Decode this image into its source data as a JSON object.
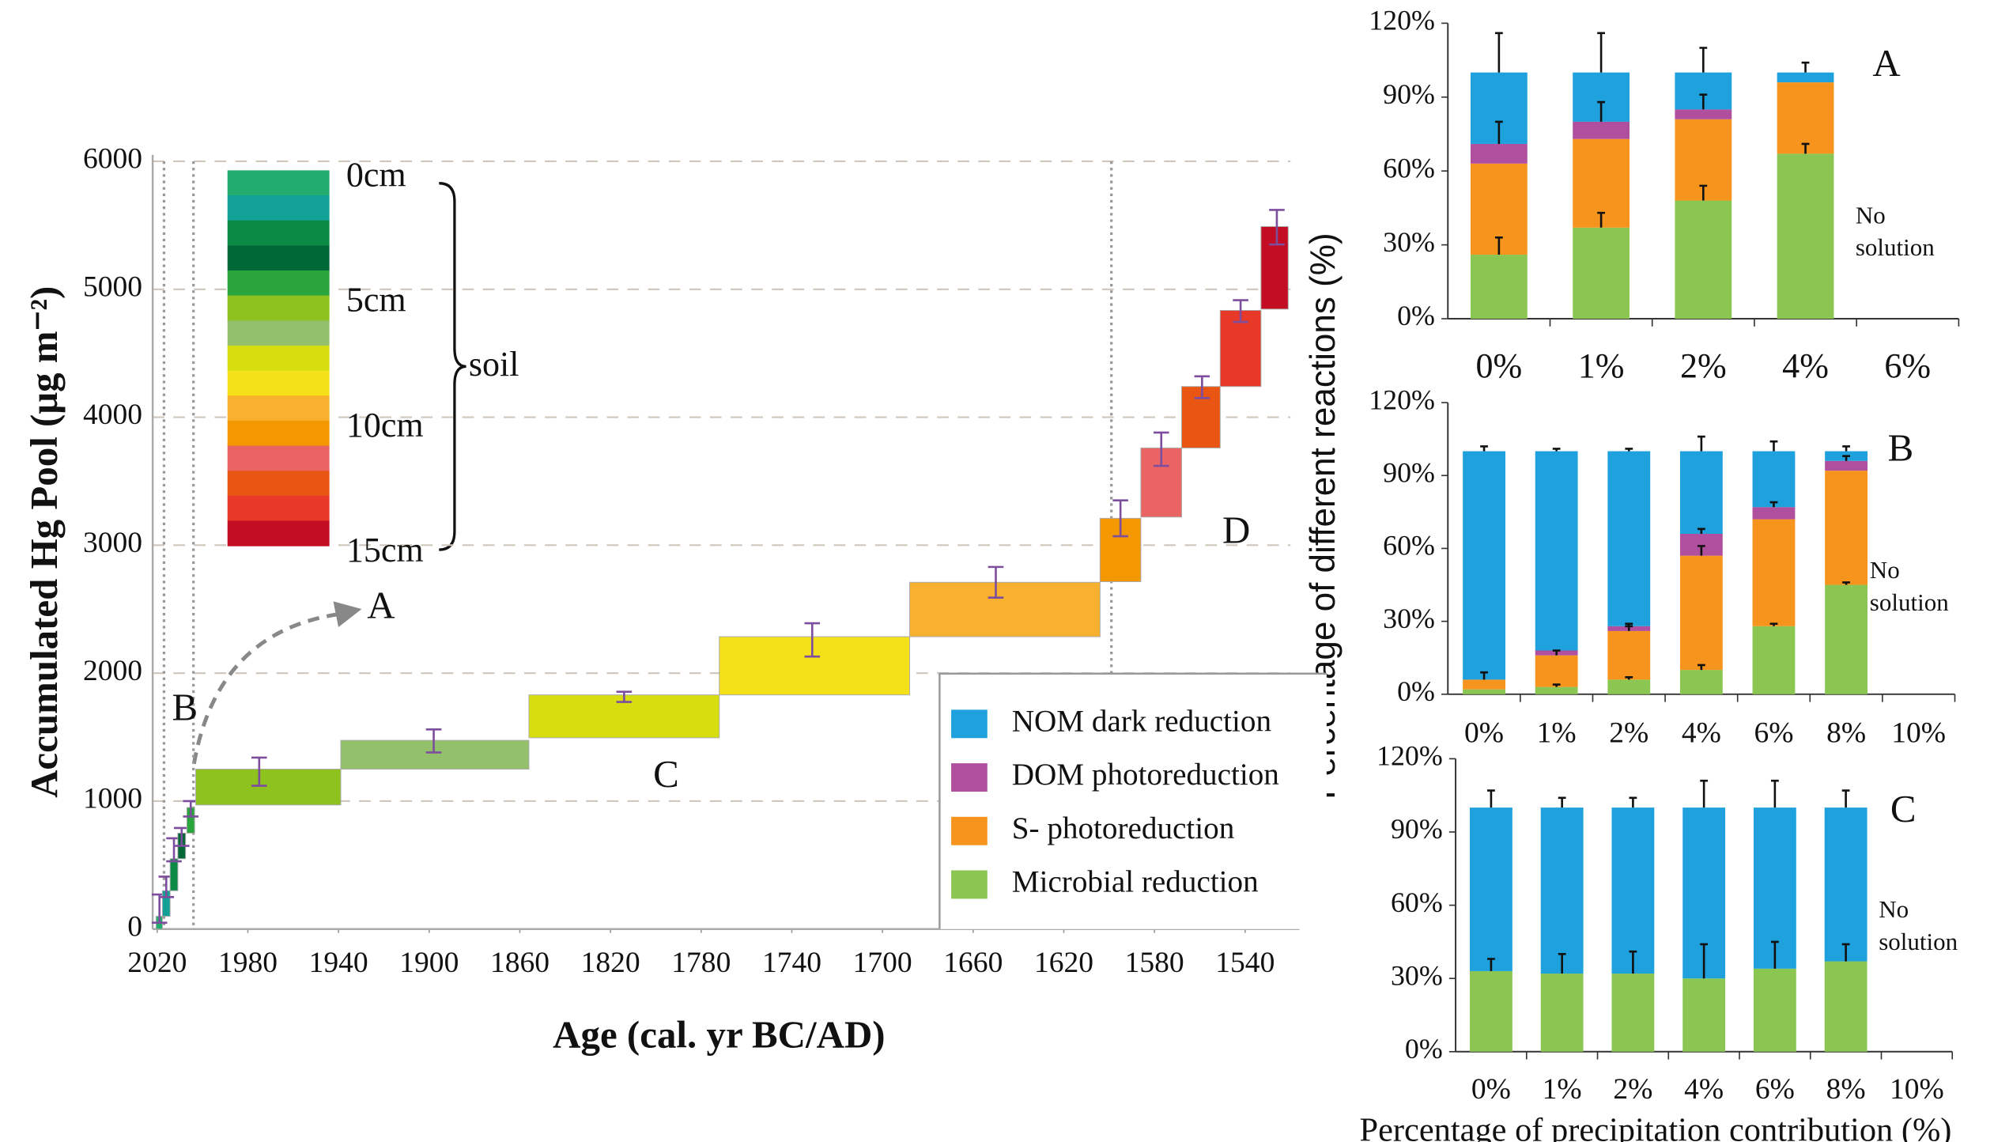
{
  "chart_data": [
    {
      "type": "floating-bar",
      "xlabel": "Age (cal. yr BC/AD)",
      "ylabel": "Accumulated Hg Pool (μg m⁻²)",
      "xlim": [
        2022,
        1516
      ],
      "xticks": [
        2020,
        1980,
        1940,
        1900,
        1860,
        1820,
        1780,
        1740,
        1700,
        1660,
        1620,
        1580,
        1540
      ],
      "ylim": [
        0,
        6000
      ],
      "yticks": [
        0,
        1000,
        2000,
        3000,
        4000,
        5000,
        6000
      ],
      "grid": true,
      "vlines": [
        2017,
        2004,
        1599
      ],
      "error_color": "#7d4e9e",
      "segments": [
        {
          "x": [
            2020.5,
            2017.7
          ],
          "y": [
            0,
            100
          ],
          "color": "#22ac6e",
          "error_x": 2019,
          "error_value": 160,
          "error": 110
        },
        {
          "x": [
            2017.7,
            2014.3
          ],
          "y": [
            100,
            300
          ],
          "color": "#12a196",
          "error_x": 2016,
          "error_value": 330,
          "error": 80
        },
        {
          "x": [
            2014.3,
            2010.9
          ],
          "y": [
            300,
            550
          ],
          "color": "#0a8a45",
          "error_x": 2012.6,
          "error_value": 620,
          "error": 90
        },
        {
          "x": [
            2010.9,
            2007.5
          ],
          "y": [
            550,
            750
          ],
          "color": "#006837",
          "error_x": 2009.2,
          "error_value": 720,
          "error": 70
        },
        {
          "x": [
            2006.9,
            2003.5
          ],
          "y": [
            750,
            950
          ],
          "color": "#2aa43c",
          "error_x": 2005.2,
          "error_value": 940,
          "error": 60
        },
        {
          "x": [
            2003,
            1939
          ],
          "y": [
            970,
            1250
          ],
          "color": "#8dc21f",
          "error_x": 1975,
          "error_value": 1230,
          "error": 110
        },
        {
          "x": [
            1939,
            1856
          ],
          "y": [
            1250,
            1475
          ],
          "color": "#93c06a",
          "error_x": 1898,
          "error_value": 1470,
          "error": 90
        },
        {
          "x": [
            1856,
            1772
          ],
          "y": [
            1495,
            1830
          ],
          "color": "#d7de10",
          "error_x": 1814,
          "error_value": 1815,
          "error": 40
        },
        {
          "x": [
            1772,
            1688
          ],
          "y": [
            1830,
            2285
          ],
          "color": "#f5e11a",
          "error_x": 1731,
          "error_value": 2260,
          "error": 130
        },
        {
          "x": [
            1688,
            1604
          ],
          "y": [
            2285,
            2710
          ],
          "color": "#f7b12f",
          "error_x": 1650,
          "error_value": 2710,
          "error": 120
        },
        {
          "x": [
            1604,
            1586
          ],
          "y": [
            2715,
            3210
          ],
          "color": "#f39800",
          "error_x": 1595,
          "error_value": 3210,
          "error": 140
        },
        {
          "x": [
            1586,
            1568
          ],
          "y": [
            3220,
            3760
          ],
          "color": "#eb6464",
          "error_x": 1577,
          "error_value": 3750,
          "error": 130
        },
        {
          "x": [
            1568,
            1551
          ],
          "y": [
            3760,
            4240
          ],
          "color": "#e95513",
          "error_x": 1559,
          "error_value": 4235,
          "error": 85
        },
        {
          "x": [
            1551,
            1533
          ],
          "y": [
            4240,
            4835
          ],
          "color": "#e73828",
          "error_x": 1542,
          "error_value": 4830,
          "error": 85
        },
        {
          "x": [
            1533,
            1521
          ],
          "y": [
            4845,
            5490
          ],
          "color": "#c30d23",
          "error_x": 1526,
          "error_value": 5485,
          "error": 135
        }
      ],
      "depth_legend": {
        "colors": [
          "#22ac6e",
          "#12a196",
          "#0a8a45",
          "#006837",
          "#2aa43c",
          "#8dc21f",
          "#93c06a",
          "#d7de10",
          "#f5e11a",
          "#f7b12f",
          "#f39800",
          "#eb6464",
          "#e95513",
          "#e73828",
          "#c30d23"
        ],
        "labels": [
          "0cm",
          "5cm",
          "10cm",
          "15cm"
        ],
        "brace_label": "soil"
      },
      "annotations": [
        "A",
        "B",
        "C",
        "D"
      ]
    },
    {
      "type": "stacked-bar",
      "label": "A",
      "note": "No solution",
      "categories": [
        "0%",
        "1%",
        "2%",
        "4%",
        "6%"
      ],
      "ylim": [
        0,
        120
      ],
      "yticks": [
        {
          "value": 0,
          "label": "0%"
        },
        {
          "value": 30,
          "label": "30%"
        },
        {
          "value": 60,
          "label": "60%"
        },
        {
          "value": 90,
          "label": "90%"
        },
        {
          "value": 120,
          "label": "120%"
        }
      ],
      "series": [
        {
          "name": "Microbial reduction",
          "color": "#8bc653",
          "values": [
            26,
            37,
            48,
            67,
            null
          ],
          "errors": [
            7,
            6,
            6,
            4,
            null
          ]
        },
        {
          "name": "S- photoreduction",
          "color": "#f7941d",
          "values": [
            37,
            36,
            33,
            29,
            null
          ],
          "errors": [
            null,
            null,
            null,
            null,
            null
          ]
        },
        {
          "name": "DOM photoreduction",
          "color": "#b04f9e",
          "values": [
            8,
            7,
            4,
            0,
            null
          ],
          "errors": [
            9,
            8,
            6,
            null,
            null
          ]
        },
        {
          "name": "NOM dark reduction",
          "color": "#1ea1dc",
          "values": [
            29,
            20,
            15,
            4,
            null
          ],
          "errors": [
            16,
            16,
            10,
            4,
            null
          ]
        }
      ]
    },
    {
      "type": "stacked-bar",
      "label": "B",
      "note": "No solution",
      "ylabel": "Percentage of different reactions (%)",
      "categories": [
        "0%",
        "1%",
        "2%",
        "4%",
        "6%",
        "8%",
        "10%"
      ],
      "ylim": [
        0,
        120
      ],
      "yticks": [
        {
          "value": 0,
          "label": "0%"
        },
        {
          "value": 30,
          "label": "30%"
        },
        {
          "value": 60,
          "label": "60%"
        },
        {
          "value": 90,
          "label": "90%"
        },
        {
          "value": 120,
          "label": "120%"
        }
      ],
      "series": [
        {
          "name": "Microbial reduction",
          "color": "#8bc653",
          "values": [
            2,
            3,
            6,
            10,
            28,
            45,
            null
          ],
          "errors": [
            null,
            1,
            1,
            2,
            1,
            1,
            null
          ]
        },
        {
          "name": "S- photoreduction",
          "color": "#f7941d",
          "values": [
            4,
            13,
            20,
            47,
            44,
            47,
            null
          ],
          "errors": [
            3,
            2,
            2,
            4,
            null,
            null,
            null
          ]
        },
        {
          "name": "DOM photoreduction",
          "color": "#b04f9e",
          "values": [
            0,
            2,
            2,
            9,
            5,
            4,
            null
          ],
          "errors": [
            null,
            null,
            1,
            2,
            2,
            2,
            null
          ]
        },
        {
          "name": "NOM dark reduction",
          "color": "#1ea1dc",
          "values": [
            94,
            82,
            72,
            34,
            23,
            4,
            null
          ],
          "errors": [
            2,
            1,
            1,
            6,
            4,
            2,
            null
          ]
        }
      ]
    },
    {
      "type": "stacked-bar",
      "label": "C",
      "note": "No solution",
      "xlabel": "Percentage of precipitation contribution (%)",
      "categories": [
        "0%",
        "1%",
        "2%",
        "4%",
        "6%",
        "8%",
        "10%"
      ],
      "ylim": [
        0,
        120
      ],
      "yticks": [
        {
          "value": 0,
          "label": "0%"
        },
        {
          "value": 30,
          "label": "30%"
        },
        {
          "value": 60,
          "label": "60%"
        },
        {
          "value": 90,
          "label": "90%"
        },
        {
          "value": 120,
          "label": "120%"
        }
      ],
      "series": [
        {
          "name": "Microbial reduction",
          "color": "#8bc653",
          "values": [
            33,
            32,
            32,
            30,
            34,
            37,
            null
          ],
          "errors": [
            5,
            8,
            9,
            14,
            11,
            7,
            null
          ]
        },
        {
          "name": "NOM dark reduction",
          "color": "#1ea1dc",
          "values": [
            67,
            68,
            68,
            70,
            66,
            63,
            null
          ],
          "errors": [
            7,
            4,
            4,
            11,
            11,
            7,
            null
          ]
        }
      ]
    }
  ]
}
